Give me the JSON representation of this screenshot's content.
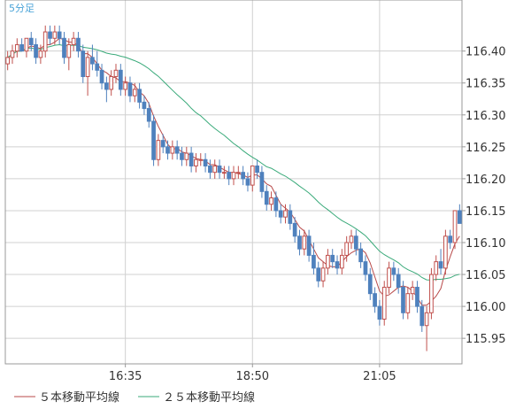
{
  "chart_data": {
    "type": "candlestick",
    "period_label": "5分足",
    "ylim": [
      115.91,
      116.48
    ],
    "y_ticks": [
      115.95,
      116.0,
      116.05,
      116.1,
      116.15,
      116.2,
      116.25,
      116.3,
      116.35,
      116.4
    ],
    "y_tick_labels": [
      "115.95",
      "116.00",
      "116.05",
      "116.10",
      "116.15",
      "116.20",
      "116.25",
      "116.30",
      "116.35",
      "116.40"
    ],
    "x_ticks": [
      {
        "label": "16:35",
        "index": 25
      },
      {
        "label": "18:50",
        "index": 52
      },
      {
        "label": "21:05",
        "index": 79
      }
    ],
    "candles": [
      [
        116.38,
        116.4,
        116.37,
        116.39
      ],
      [
        116.39,
        116.41,
        116.38,
        116.4
      ],
      [
        116.4,
        116.42,
        116.39,
        116.41
      ],
      [
        116.41,
        116.42,
        116.4,
        116.4
      ],
      [
        116.4,
        116.42,
        116.39,
        116.42
      ],
      [
        116.42,
        116.43,
        116.4,
        116.41
      ],
      [
        116.41,
        116.42,
        116.38,
        116.39
      ],
      [
        116.39,
        116.41,
        116.38,
        116.4
      ],
      [
        116.4,
        116.44,
        116.39,
        116.43
      ],
      [
        116.43,
        116.44,
        116.41,
        116.42
      ],
      [
        116.42,
        116.44,
        116.41,
        116.43
      ],
      [
        116.43,
        116.44,
        116.41,
        116.42
      ],
      [
        116.42,
        116.43,
        116.38,
        116.39
      ],
      [
        116.39,
        116.42,
        116.37,
        116.41
      ],
      [
        116.41,
        116.43,
        116.4,
        116.42
      ],
      [
        116.42,
        116.43,
        116.39,
        116.4
      ],
      [
        116.4,
        116.41,
        116.35,
        116.36
      ],
      [
        116.36,
        116.4,
        116.33,
        116.39
      ],
      [
        116.39,
        116.41,
        116.37,
        116.38
      ],
      [
        116.38,
        116.4,
        116.36,
        116.37
      ],
      [
        116.37,
        116.38,
        116.34,
        116.35
      ],
      [
        116.35,
        116.36,
        116.32,
        116.34
      ],
      [
        116.34,
        116.37,
        116.33,
        116.36
      ],
      [
        116.36,
        116.38,
        116.35,
        116.37
      ],
      [
        116.37,
        116.38,
        116.33,
        116.34
      ],
      [
        116.34,
        116.36,
        116.33,
        116.35
      ],
      [
        116.35,
        116.36,
        116.32,
        116.33
      ],
      [
        116.33,
        116.35,
        116.32,
        116.34
      ],
      [
        116.34,
        116.35,
        116.31,
        116.32
      ],
      [
        116.32,
        116.33,
        116.3,
        116.31
      ],
      [
        116.31,
        116.32,
        116.28,
        116.29
      ],
      [
        116.29,
        116.3,
        116.22,
        116.23
      ],
      [
        116.23,
        116.27,
        116.22,
        116.26
      ],
      [
        116.26,
        116.27,
        116.24,
        116.25
      ],
      [
        116.25,
        116.26,
        116.23,
        116.24
      ],
      [
        116.24,
        116.26,
        116.23,
        116.25
      ],
      [
        116.25,
        116.26,
        116.23,
        116.24
      ],
      [
        116.24,
        116.25,
        116.22,
        116.23
      ],
      [
        116.23,
        116.25,
        116.22,
        116.24
      ],
      [
        116.24,
        116.25,
        116.21,
        116.22
      ],
      [
        116.22,
        116.24,
        116.21,
        116.23
      ],
      [
        116.23,
        116.24,
        116.22,
        116.23
      ],
      [
        116.23,
        116.24,
        116.21,
        116.22
      ],
      [
        116.22,
        116.23,
        116.2,
        116.21
      ],
      [
        116.21,
        116.23,
        116.2,
        116.22
      ],
      [
        116.22,
        116.23,
        116.2,
        116.21
      ],
      [
        116.21,
        116.22,
        116.2,
        116.21
      ],
      [
        116.21,
        116.22,
        116.19,
        116.2
      ],
      [
        116.2,
        116.22,
        116.19,
        116.21
      ],
      [
        116.21,
        116.22,
        116.2,
        116.21
      ],
      [
        116.21,
        116.22,
        116.19,
        116.2
      ],
      [
        116.2,
        116.21,
        116.18,
        116.19
      ],
      [
        116.19,
        116.22,
        116.18,
        116.22
      ],
      [
        116.22,
        116.23,
        116.2,
        116.21
      ],
      [
        116.21,
        116.22,
        116.17,
        116.18
      ],
      [
        116.18,
        116.19,
        116.15,
        116.16
      ],
      [
        116.16,
        116.18,
        116.15,
        116.17
      ],
      [
        116.17,
        116.18,
        116.14,
        116.15
      ],
      [
        116.15,
        116.16,
        116.13,
        116.14
      ],
      [
        116.14,
        116.16,
        116.13,
        116.15
      ],
      [
        116.15,
        116.16,
        116.12,
        116.13
      ],
      [
        116.13,
        116.14,
        116.1,
        116.11
      ],
      [
        116.11,
        116.12,
        116.08,
        116.09
      ],
      [
        116.09,
        116.12,
        116.08,
        116.11
      ],
      [
        116.11,
        116.12,
        116.07,
        116.08
      ],
      [
        116.08,
        116.1,
        116.05,
        116.06
      ],
      [
        116.06,
        116.07,
        116.03,
        116.04
      ],
      [
        116.04,
        116.07,
        116.03,
        116.06
      ],
      [
        116.06,
        116.09,
        116.05,
        116.08
      ],
      [
        116.08,
        116.09,
        116.06,
        116.07
      ],
      [
        116.07,
        116.08,
        116.05,
        116.06
      ],
      [
        116.06,
        116.09,
        116.05,
        116.08
      ],
      [
        116.08,
        116.11,
        116.07,
        116.1
      ],
      [
        116.1,
        116.12,
        116.09,
        116.11
      ],
      [
        116.11,
        116.12,
        116.08,
        116.09
      ],
      [
        116.09,
        116.1,
        116.06,
        116.07
      ],
      [
        116.07,
        116.08,
        116.04,
        116.05
      ],
      [
        116.05,
        116.06,
        116.01,
        116.02
      ],
      [
        116.02,
        116.03,
        115.99,
        116.0
      ],
      [
        116.0,
        116.01,
        115.97,
        115.98
      ],
      [
        115.98,
        116.04,
        115.97,
        116.03
      ],
      [
        116.03,
        116.07,
        116.02,
        116.06
      ],
      [
        116.06,
        116.07,
        116.04,
        116.05
      ],
      [
        116.05,
        116.06,
        116.02,
        116.03
      ],
      [
        116.03,
        116.04,
        115.98,
        115.99
      ],
      [
        115.99,
        116.03,
        115.98,
        116.02
      ],
      [
        116.02,
        116.04,
        116.01,
        116.03
      ],
      [
        116.03,
        116.04,
        115.99,
        116.0
      ],
      [
        116.0,
        116.01,
        115.96,
        115.97
      ],
      [
        115.97,
        116.0,
        115.93,
        115.99
      ],
      [
        115.99,
        116.06,
        115.98,
        116.05
      ],
      [
        116.05,
        116.08,
        116.04,
        116.07
      ],
      [
        116.07,
        116.09,
        116.05,
        116.06
      ],
      [
        116.06,
        116.12,
        116.05,
        116.11
      ],
      [
        116.11,
        116.12,
        116.09,
        116.1
      ],
      [
        116.1,
        116.15,
        116.09,
        116.15
      ],
      [
        116.15,
        116.16,
        116.13,
        116.13
      ]
    ],
    "series": [
      {
        "name": "５本移動平均線",
        "period": 5,
        "color": "#b84a4a"
      },
      {
        "name": "２５本移動平均線",
        "period": 25,
        "color": "#3aaa7a"
      }
    ],
    "colors": {
      "up": "#ffffff",
      "up_border": "#c0504d",
      "down": "#4f81bd",
      "down_border": "#4f81bd",
      "grid": "#d0d0d0"
    }
  }
}
